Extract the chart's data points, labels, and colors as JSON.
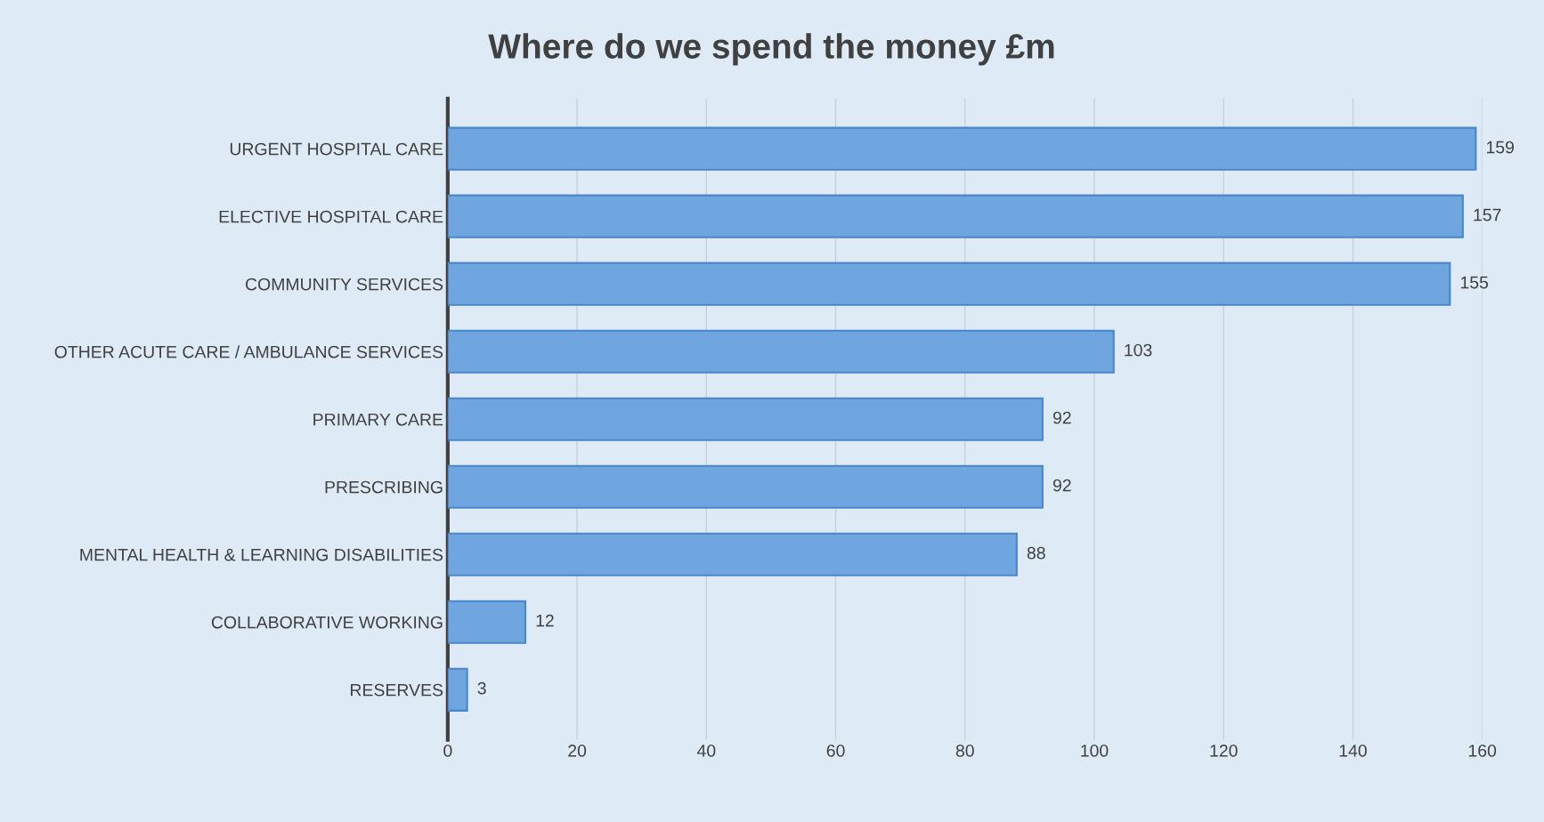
{
  "chart_data": {
    "type": "bar",
    "orientation": "horizontal",
    "title": "Where do we spend the money £m",
    "categories": [
      "URGENT HOSPITAL CARE",
      "ELECTIVE HOSPITAL CARE",
      "COMMUNITY SERVICES",
      "OTHER ACUTE CARE / AMBULANCE SERVICES",
      "PRIMARY CARE",
      "PRESCRIBING",
      "MENTAL HEALTH & LEARNING DISABILITIES",
      "COLLABORATIVE WORKING",
      "RESERVES"
    ],
    "values": [
      159,
      157,
      155,
      103,
      92,
      92,
      88,
      12,
      3
    ],
    "color": "#6fa6e0",
    "xlim": [
      0,
      160
    ],
    "xticks": [
      0,
      20,
      40,
      60,
      80,
      100,
      120,
      140,
      160
    ],
    "grid": "x",
    "data_labels": true,
    "legend": false
  }
}
